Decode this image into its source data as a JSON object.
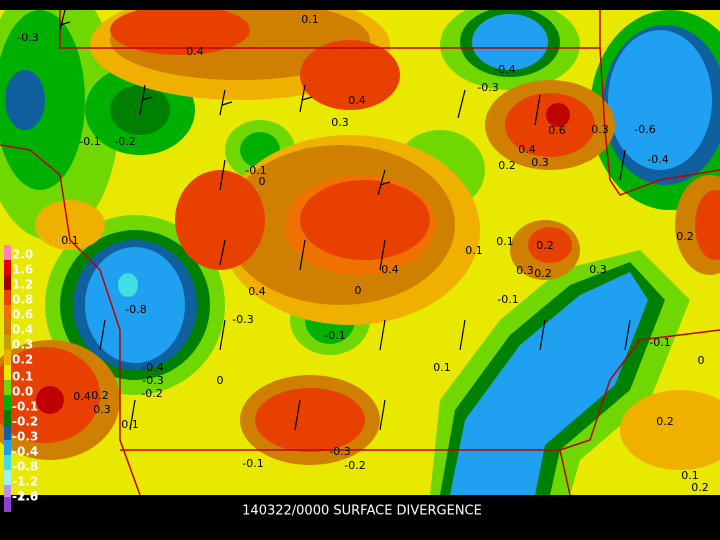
{
  "title": "140322/0000 SURFACE DIVERGENCE",
  "legend": {
    "labels": [
      "2.0",
      "1.6",
      "1.2",
      "0.8",
      "0.6",
      "0.4",
      "0.3",
      "0.2",
      "0.1",
      "0.0",
      "-0.1",
      "-0.2",
      "-0.3",
      "-0.4",
      "-0.8",
      "-1.2",
      "-1.6",
      "-2.0"
    ]
  },
  "contour_labels": [
    "-0.3",
    "0.1",
    "0.4",
    "-0.4",
    "-0.3",
    "0.4",
    "0.3",
    "-0.1",
    "-0.2",
    "0.6",
    "0.3",
    "-0.6",
    "0.4",
    "0.3",
    "0.2",
    "-0.4",
    "-0.1",
    "0",
    "0.1",
    "0.1",
    "0.1",
    "0.2",
    "0.3",
    "0.2",
    "0.3",
    "0.2",
    "0.4",
    "0",
    "0.4",
    "-0.1",
    "-0.8",
    "-0.3",
    "-0.1",
    "-0.1",
    "0",
    "0.1",
    "-0.4",
    "-0.3",
    "0",
    "0.2",
    "0.4",
    "-0.2",
    "0.3",
    "0.1",
    "0.2",
    "-0.3",
    "-0.2",
    "-0.1",
    "0.1",
    "0.2"
  ]
}
